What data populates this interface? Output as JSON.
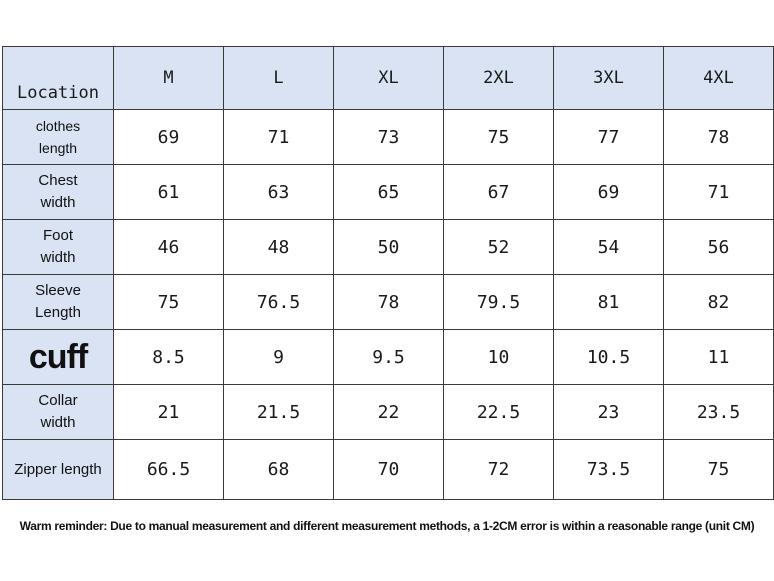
{
  "table": {
    "corner_label": "Location",
    "columns": [
      "M",
      "L",
      "XL",
      "2XL",
      "3XL",
      "4XL"
    ],
    "rows": [
      {
        "label_lines": [
          "clothes",
          "length"
        ],
        "values": [
          "69",
          "71",
          "73",
          "75",
          "77",
          "78"
        ]
      },
      {
        "label_lines": [
          "Chest",
          "width"
        ],
        "values": [
          "61",
          "63",
          "65",
          "67",
          "69",
          "71"
        ]
      },
      {
        "label_lines": [
          "Foot",
          "width"
        ],
        "values": [
          "46",
          "48",
          "50",
          "52",
          "54",
          "56"
        ]
      },
      {
        "label_lines": [
          "Sleeve",
          "Length"
        ],
        "values": [
          "75",
          "76.5",
          "78",
          "79.5",
          "81",
          "82"
        ]
      },
      {
        "label_lines": [
          "cuff"
        ],
        "values": [
          "8.5",
          "9",
          "9.5",
          "10",
          "10.5",
          "11"
        ]
      },
      {
        "label_lines": [
          "Collar",
          "width"
        ],
        "values": [
          "21",
          "21.5",
          "22",
          "22.5",
          "23",
          "23.5"
        ]
      },
      {
        "label_lines": [
          "Zipper length"
        ],
        "values": [
          "66.5",
          "68",
          "70",
          "72",
          "73.5",
          "75"
        ]
      }
    ]
  },
  "reminder": "Warm reminder: Due to manual measurement and different measurement methods, a 1-2CM error is within a reasonable range (unit CM)",
  "colors": {
    "header_fill": "#d9e3f4",
    "cell_fill": "#ffffff",
    "border": "#3a3a3a"
  }
}
